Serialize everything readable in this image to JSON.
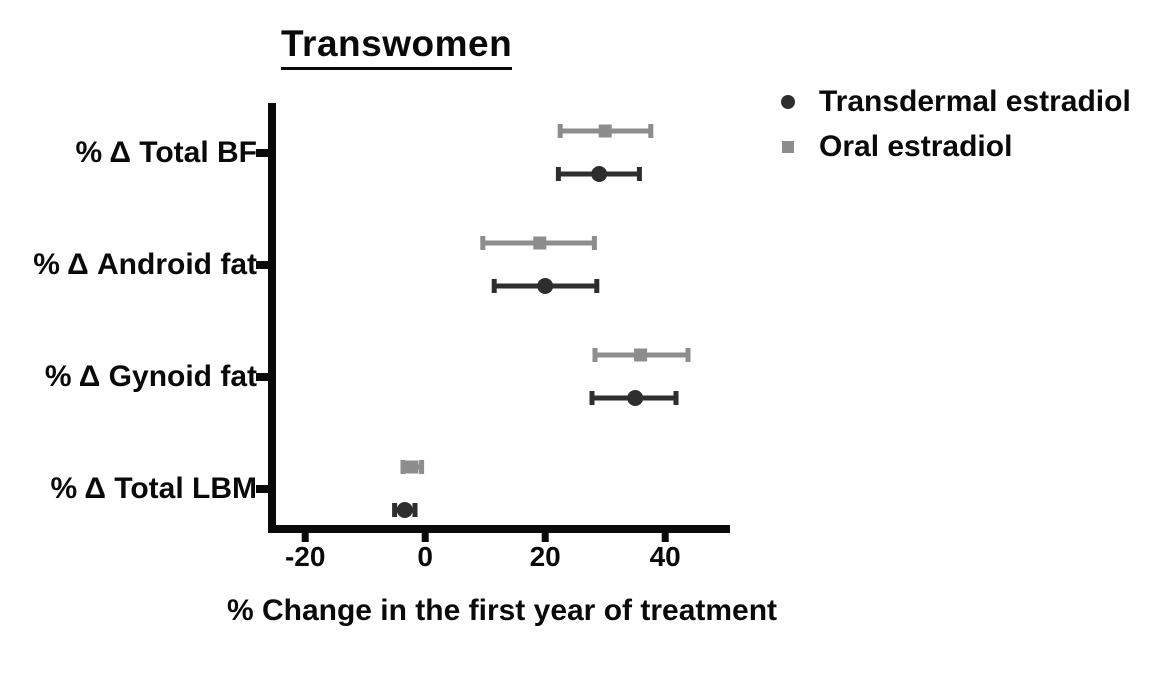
{
  "figure": {
    "background": "#ffffff",
    "axis_color": "#0a0a0a",
    "text_color": "#0a0a0a"
  },
  "chart_data": {
    "type": "scatter",
    "subtype": "horizontal-errorbar-forest",
    "title": "Transwomen",
    "xlabel": "% Change in the first year of treatment",
    "categories": [
      "% Δ Total BF",
      "% Δ Android fat",
      "% Δ Gynoid fat",
      "% Δ Total LBM"
    ],
    "xlim": [
      -26.2,
      50.8
    ],
    "x_ticks": [
      -20,
      0,
      20,
      40
    ],
    "grid": false,
    "legend_position": "top-right",
    "series": [
      {
        "name": "Transdermal estradiol",
        "marker": "circle",
        "color": "#2e2e2e",
        "values": [
          29,
          20,
          35,
          -3.4
        ],
        "ci_low": [
          22.2,
          11.5,
          27.8,
          -5.1
        ],
        "ci_high": [
          35.7,
          28.6,
          41.8,
          -1.7
        ]
      },
      {
        "name": "Oral estradiol",
        "marker": "square",
        "color": "#8d8d8d",
        "values": [
          30,
          19.1,
          35.9,
          -2.2
        ],
        "ci_low": [
          22.5,
          9.6,
          28.3,
          -3.7
        ],
        "ci_high": [
          37.6,
          28.2,
          43.8,
          -0.6
        ]
      }
    ]
  }
}
